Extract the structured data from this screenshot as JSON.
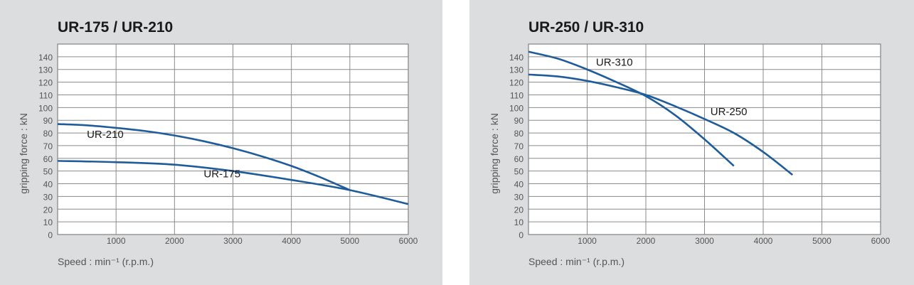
{
  "colors": {
    "curve": "#1f5c99",
    "background": "#dcdddf",
    "grid": "#8a8a8a"
  },
  "chart_data": [
    {
      "type": "line",
      "title": "UR-175 / UR-210",
      "xlabel": "Speed : min⁻¹ (r.p.m.)",
      "ylabel": "gripping force : kN",
      "xlim": [
        0,
        6000
      ],
      "ylim": [
        0,
        150
      ],
      "xticks": [
        1000,
        2000,
        3000,
        4000,
        5000,
        6000
      ],
      "yticks": [
        0,
        10,
        20,
        30,
        40,
        50,
        60,
        70,
        80,
        90,
        100,
        110,
        120,
        130,
        140
      ],
      "grid": true,
      "series": [
        {
          "name": "UR-210",
          "label_at": [
            500,
            76
          ],
          "x": [
            0,
            500,
            1000,
            1500,
            2000,
            2500,
            3000,
            3500,
            4000,
            4500,
            5000
          ],
          "y": [
            87,
            86,
            84,
            81.5,
            78,
            73.5,
            68,
            61.5,
            54,
            45,
            35
          ]
        },
        {
          "name": "UR-175",
          "label_at": [
            2500,
            45
          ],
          "x": [
            0,
            1000,
            2000,
            3000,
            4000,
            5000,
            6000
          ],
          "y": [
            58,
            57,
            55,
            50,
            43,
            35,
            24
          ]
        }
      ]
    },
    {
      "type": "line",
      "title": "UR-250 / UR-310",
      "xlabel": "Speed : min⁻¹ (r.p.m.)",
      "ylabel": "gripping force : kN",
      "xlim": [
        0,
        6000
      ],
      "ylim": [
        0,
        150
      ],
      "xticks": [
        1000,
        2000,
        3000,
        4000,
        5000,
        6000
      ],
      "yticks": [
        0,
        10,
        20,
        30,
        40,
        50,
        60,
        70,
        80,
        90,
        100,
        110,
        120,
        130,
        140
      ],
      "grid": true,
      "series": [
        {
          "name": "UR-310",
          "label_at": [
            1150,
            133
          ],
          "x": [
            0,
            500,
            1000,
            1500,
            2000,
            2500,
            3000,
            3500
          ],
          "y": [
            144,
            138.5,
            130,
            120,
            109,
            94,
            75,
            54
          ]
        },
        {
          "name": "UR-250",
          "label_at": [
            3100,
            94
          ],
          "x": [
            0,
            500,
            1000,
            1500,
            2000,
            2500,
            3000,
            3500,
            4000,
            4500
          ],
          "y": [
            126,
            124.5,
            121,
            116,
            110,
            101,
            91,
            80,
            65,
            47
          ]
        }
      ]
    }
  ]
}
